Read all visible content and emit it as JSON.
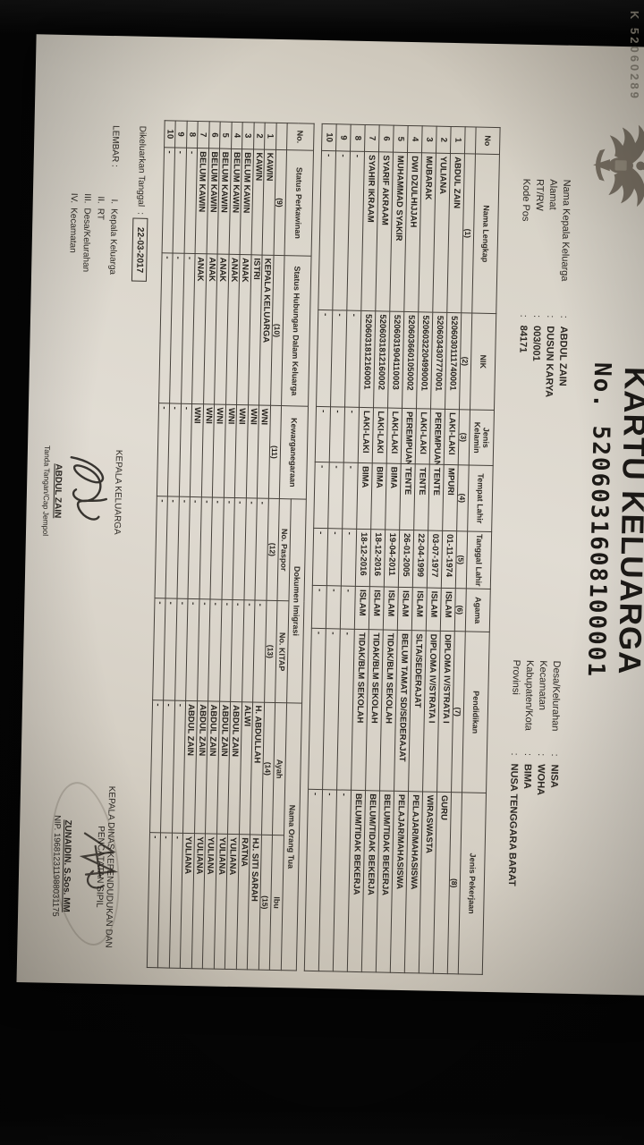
{
  "photo": {
    "corner_text": "K 52060289"
  },
  "title": "KARTU KELUARGA",
  "doc_no_label": "No.",
  "doc_no": "5206031608100001",
  "header": {
    "left": [
      {
        "label": "Nama Kepala Keluarga",
        "value": "ABDUL ZAIN"
      },
      {
        "label": "Alamat",
        "value": "DUSUN KARYA"
      },
      {
        "label": "RT/RW",
        "value": "003/001"
      },
      {
        "label": "Kode Pos",
        "value": "84171"
      }
    ],
    "right": [
      {
        "label": "Desa/Kelurahan",
        "value": "NISA"
      },
      {
        "label": "Kecamatan",
        "value": "WOHA"
      },
      {
        "label": "Kabupaten/Kota",
        "value": "BIMA"
      },
      {
        "label": "Provinsi",
        "value": "NUSA TENGGARA BARAT"
      }
    ]
  },
  "table1": {
    "headers": [
      "No",
      "Nama Lengkap",
      "NIK",
      "Jenis Kelamin",
      "Tempat Lahir",
      "Tanggal Lahir",
      "Agama",
      "Pendidikan",
      "Jenis Pekerjaan"
    ],
    "numbers": [
      "",
      "(1)",
      "(2)",
      "(3)",
      "(4)",
      "(5)",
      "(6)",
      "(7)",
      "(8)"
    ],
    "rows": [
      [
        "1",
        "ABDUL ZAIN",
        "5206030111740001",
        "LAKI-LAKI",
        "MPURI",
        "01-11-1974",
        "ISLAM",
        "DIPLOMA IV/STRATA I",
        "GURU"
      ],
      [
        "2",
        "YULIANA",
        "5206034307770001",
        "PEREMPUAN",
        "TENTE",
        "03-07-1977",
        "ISLAM",
        "DIPLOMA IV/STRATA I",
        "WIRASWASTA"
      ],
      [
        "3",
        "MUBARAK",
        "5206032204990001",
        "LAKI-LAKI",
        "TENTE",
        "22-04-1999",
        "ISLAM",
        "SLTA/SEDERAJAT",
        "PELAJAR/MAHASISWA"
      ],
      [
        "4",
        "DWI DZULHIJJAH",
        "5206036601050002",
        "PEREMPUAN",
        "TENTE",
        "26-01-2005",
        "ISLAM",
        "BELUM TAMAT SD/SEDERAJAT",
        "PELAJAR/MAHASISWA"
      ],
      [
        "5",
        "MUHAMMAD SYAKIR",
        "5206031904110003",
        "LAKI-LAKI",
        "BIMA",
        "19-04-2011",
        "ISLAM",
        "TIDAK/BLM SEKOLAH",
        "BELUM/TIDAK BEKERJA"
      ],
      [
        "6",
        "SYARIF AKRAAM",
        "5206031812160002",
        "LAKI-LAKI",
        "BIMA",
        "18-12-2016",
        "ISLAM",
        "TIDAK/BLM SEKOLAH",
        "BELUM/TIDAK BEKERJA"
      ],
      [
        "7",
        "SYAHIR IKRAAM",
        "5206031812160001",
        "LAKI-LAKI",
        "BIMA",
        "18-12-2016",
        "ISLAM",
        "TIDAK/BLM SEKOLAH",
        "BELUM/TIDAK BEKERJA"
      ],
      [
        "8",
        "-",
        "-",
        "-",
        "-",
        "-",
        "-",
        "-",
        "-"
      ],
      [
        "9",
        "-",
        "-",
        "-",
        "-",
        "-",
        "-",
        "-",
        "-"
      ],
      [
        "10",
        "-",
        "-",
        "-",
        "-",
        "-",
        "-",
        "-",
        "-"
      ]
    ]
  },
  "table2": {
    "no_header": "No.",
    "status_perkawinan": "Status Perkawinan",
    "status_hubungan": "Status Hubungan Dalam Keluarga",
    "kewarganegaraan": "Kewarganegaraan",
    "dokumen_imigrasi": "Dokumen Imigrasi",
    "no_paspor": "No. Paspor",
    "no_kitap": "No. KITAP",
    "nama_orang_tua": "Nama Orang Tua",
    "ayah": "Ayah",
    "ibu": "Ibu",
    "numbers": [
      "",
      "(9)",
      "(10)",
      "(11)",
      "(12)",
      "(13)",
      "(14)",
      "(15)"
    ],
    "rows": [
      [
        "1",
        "KAWIN",
        "KEPALA KELUARGA",
        "WNI",
        "-",
        "-",
        "H. ABDULLAH",
        "HJ. SITI SARAH"
      ],
      [
        "2",
        "KAWIN",
        "ISTRI",
        "WNI",
        "-",
        "-",
        "ALWI",
        "RATNA"
      ],
      [
        "3",
        "BELUM KAWIN",
        "ANAK",
        "WNI",
        "-",
        "-",
        "ABDUL ZAIN",
        "YULIANA"
      ],
      [
        "4",
        "BELUM KAWIN",
        "ANAK",
        "WNI",
        "-",
        "-",
        "ABDUL ZAIN",
        "YULIANA"
      ],
      [
        "5",
        "BELUM KAWIN",
        "ANAK",
        "WNI",
        "-",
        "-",
        "ABDUL ZAIN",
        "YULIANA"
      ],
      [
        "6",
        "BELUM KAWIN",
        "ANAK",
        "WNI",
        "-",
        "-",
        "ABDUL ZAIN",
        "YULIANA"
      ],
      [
        "7",
        "BELUM KAWIN",
        "ANAK",
        "WNI",
        "-",
        "-",
        "ABDUL ZAIN",
        "YULIANA"
      ],
      [
        "8",
        "-",
        "-",
        "-",
        "-",
        "-",
        "-",
        "-"
      ],
      [
        "9",
        "-",
        "-",
        "-",
        "-",
        "-",
        "-",
        "-"
      ],
      [
        "10",
        "-",
        "-",
        "-",
        "-",
        "-",
        "-",
        "-"
      ]
    ]
  },
  "footer": {
    "issued_label": "Dikeluarkan Tanggal",
    "issued_colon": ":",
    "issued_date": "22-03-2017",
    "lembar_label": "LEMBAR :",
    "lembar_items": [
      {
        "num": "I.",
        "label": "Kepala Keluarga"
      },
      {
        "num": "II.",
        "label": "RT"
      },
      {
        "num": "III.",
        "label": "Desa/Kelurahan"
      },
      {
        "num": "IV.",
        "label": "Kecamatan"
      }
    ],
    "left_sign_title": "KEPALA KELUARGA",
    "left_sign_name": "ABDUL ZAIN",
    "left_sign_caption": "Tanda Tangan/Cap Jempol",
    "right_sign_title_1": "KEPALA DINAS KEPENDUDUKAN DAN",
    "right_sign_title_2": "PENCATATAN SIPIL",
    "right_sign_name": "ZUNAIDIN. S.Sos. MM",
    "right_sign_nip": "NIP. 196812311988031175"
  }
}
